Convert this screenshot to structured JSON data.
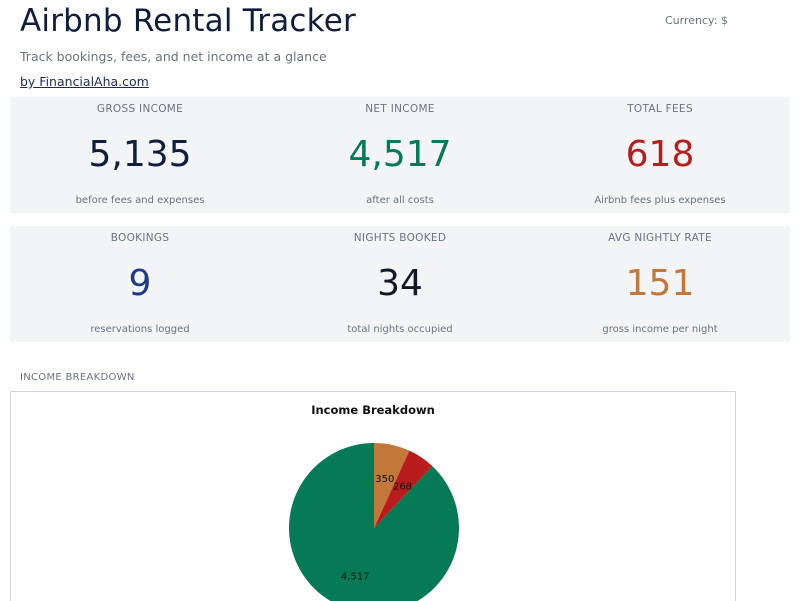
{
  "header": {
    "title": "Airbnb Rental Tracker",
    "currency": "Currency: $",
    "subtitle": "Track bookings, fees, and net income at a glance",
    "byline": "by FinancialAha.com"
  },
  "kpis_row1": [
    {
      "label": "GROSS INCOME",
      "value": "5,135",
      "sub": "before fees and expenses",
      "color": "#0f1e3d"
    },
    {
      "label": "NET INCOME",
      "value": "4,517",
      "sub": "after all costs",
      "color": "#057a55"
    },
    {
      "label": "TOTAL FEES",
      "value": "618",
      "sub": "Airbnb fees plus expenses",
      "color": "#b91c1c"
    }
  ],
  "kpis_row2": [
    {
      "label": "BOOKINGS",
      "value": "9",
      "sub": "reservations logged",
      "color": "#1e3a8a"
    },
    {
      "label": "NIGHTS BOOKED",
      "value": "34",
      "sub": "total nights occupied",
      "color": "#111827"
    },
    {
      "label": "AVG NIGHTLY RATE",
      "value": "151",
      "sub": "gross income per night",
      "color": "#c2783a"
    }
  ],
  "section": {
    "label": "INCOME BREAKDOWN"
  },
  "chart_data": {
    "type": "pie",
    "title": "Income Breakdown",
    "values": [
      4517,
      268,
      350
    ],
    "labels": [
      "4,517",
      "268",
      "350"
    ],
    "colors": [
      "#057a55",
      "#b91c1c",
      "#c2783a"
    ],
    "legend": "none"
  }
}
